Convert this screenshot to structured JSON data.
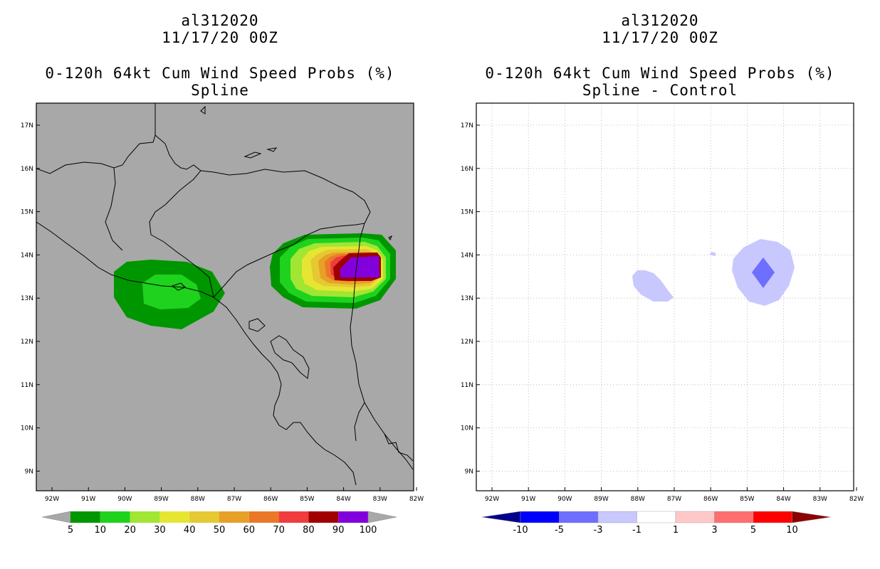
{
  "panels": [
    {
      "storm": "al312020",
      "datetime": "11/17/20 00Z",
      "product": "0-120h 64kt Cum Wind Speed Probs (%)",
      "subtitle": "Spline",
      "background": "#a8a8a8",
      "colorbar": {
        "labels": [
          "5",
          "10",
          "20",
          "30",
          "40",
          "50",
          "60",
          "70",
          "80",
          "90",
          "100"
        ],
        "colors": [
          "#009600",
          "#1ed21e",
          "#a0e632",
          "#e6e632",
          "#e6c832",
          "#e6a028",
          "#eb7828",
          "#f03c3c",
          "#a00000",
          "#8200dc"
        ]
      }
    },
    {
      "storm": "al312020",
      "datetime": "11/17/20 00Z",
      "product": "0-120h 64kt Cum Wind Speed Probs (%)",
      "subtitle": "Spline - Control",
      "background": "#ffffff",
      "colorbar": {
        "labels": [
          "-10",
          "-5",
          "-3",
          "-1",
          "1",
          "3",
          "5",
          "10"
        ],
        "colors": [
          "#0000ff",
          "#6e6eff",
          "#c8c8ff",
          "#ffffff",
          "#ffc8c8",
          "#ff6e6e",
          "#ff0000"
        ],
        "low_end_color": "#00008c",
        "high_end_color": "#8c0000"
      }
    }
  ],
  "axes": {
    "lat_labels": [
      "17N",
      "16N",
      "15N",
      "14N",
      "13N",
      "12N",
      "11N",
      "10N",
      "9N"
    ],
    "lon_labels": [
      "92W",
      "91W",
      "90W",
      "89W",
      "88W",
      "87W",
      "86W",
      "85W",
      "84W",
      "83W",
      "82W"
    ]
  }
}
